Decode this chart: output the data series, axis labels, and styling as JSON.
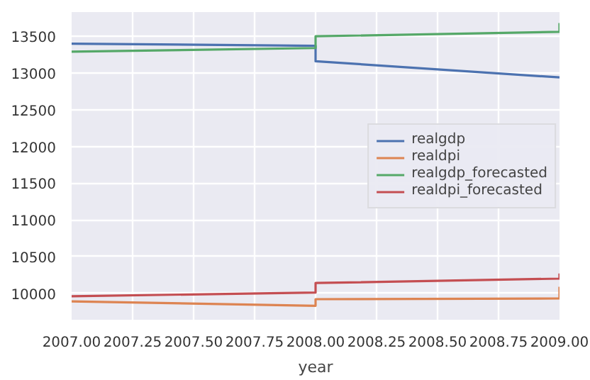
{
  "chart_data": {
    "type": "line",
    "xlabel": "year",
    "x": [
      2007,
      2008,
      2008,
      2009,
      2009
    ],
    "series": [
      {
        "name": "realgdp",
        "color": "#4c72b0",
        "values": [
          13400,
          13370,
          13160,
          12940,
          12940
        ]
      },
      {
        "name": "realdpi",
        "color": "#dd8452",
        "values": [
          9890,
          9830,
          9920,
          9930,
          10090
        ]
      },
      {
        "name": "realgdp_forecasted",
        "color": "#55a868",
        "values": [
          13290,
          13340,
          13500,
          13560,
          13680
        ]
      },
      {
        "name": "realdpi_forecasted",
        "color": "#c44e52",
        "values": [
          9960,
          10010,
          10140,
          10200,
          10270
        ]
      }
    ],
    "xlim": [
      2007,
      2009
    ],
    "ylim": [
      9640,
      13830
    ],
    "xticks": [
      {
        "value": 2007,
        "label": "2007.00"
      },
      {
        "value": 2007.25,
        "label": "2007.25"
      },
      {
        "value": 2007.5,
        "label": "2007.50"
      },
      {
        "value": 2007.75,
        "label": "2007.75"
      },
      {
        "value": 2008,
        "label": "2008.00"
      },
      {
        "value": 2008.25,
        "label": "2008.25"
      },
      {
        "value": 2008.5,
        "label": "2008.50"
      },
      {
        "value": 2008.75,
        "label": "2008.75"
      },
      {
        "value": 2009,
        "label": "2009.00"
      }
    ],
    "yticks": [
      10000,
      10500,
      11000,
      11500,
      12000,
      12500,
      13000,
      13500
    ],
    "grid": true,
    "legend": "right",
    "marker": "none",
    "line_style": "solid"
  }
}
